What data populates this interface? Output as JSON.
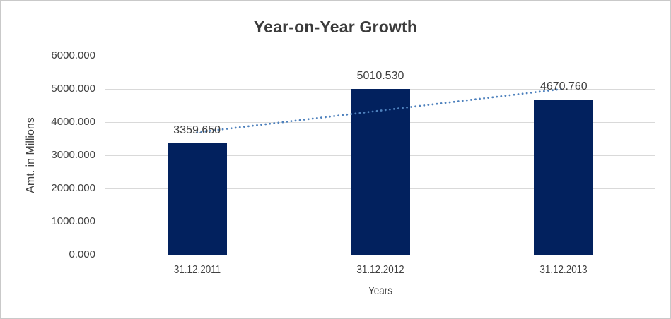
{
  "chart_data": {
    "type": "bar",
    "title": "Year-on-Year Growth",
    "xlabel": "Years",
    "ylabel": "Amt. in Millions",
    "categories": [
      "31.12.2011",
      "31.12.2012",
      "31.12.2013"
    ],
    "values": [
      3359.65,
      5010.53,
      4670.76
    ],
    "data_labels": [
      "3359.650",
      "5010.530",
      "4670.760"
    ],
    "ylim": [
      0,
      6000
    ],
    "y_tick_step": 1000,
    "y_ticks": [
      "6000.000",
      "5000.000",
      "4000.000",
      "3000.000",
      "2000.000",
      "1000.000",
      "0.000"
    ],
    "grid": true,
    "legend": false,
    "trendline": {
      "type": "linear",
      "style": "dotted"
    },
    "colors": {
      "bar": "#02215E",
      "trendline": "#4E81BD",
      "gridline": "#D9D9D9",
      "axis_line": "#D9D9D9",
      "label_text": "#404040",
      "title_text": "#3B3B3B",
      "border": "#C9C9C9"
    }
  }
}
